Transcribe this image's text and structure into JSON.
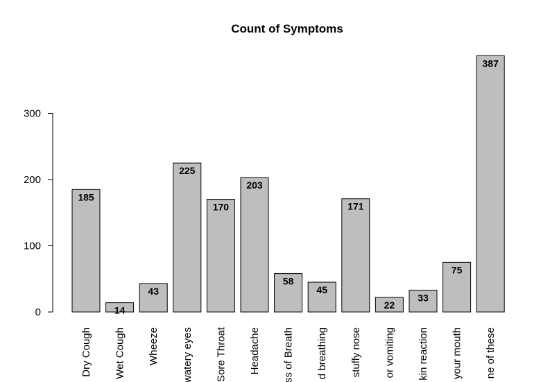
{
  "chart_data": {
    "type": "bar",
    "title": "Count of Symptoms",
    "xlabel": "",
    "ylabel": "",
    "ylim": [
      0,
      400
    ],
    "yticks": [
      0,
      100,
      200,
      300
    ],
    "grid": false,
    "bar_color": "#bebebe",
    "bar_border_color": "#000000",
    "categories": [
      "Dry Cough",
      "Wet Cough",
      "Wheeze",
      "watery eyes",
      "Sore Throat",
      "Headache",
      "ss of Breath",
      "d breathing",
      "stuffy nose",
      "or vomiting",
      "kin reaction",
      "your mouth",
      "ne of these"
    ],
    "values": [
      185,
      14,
      43,
      225,
      170,
      203,
      58,
      45,
      171,
      22,
      33,
      75,
      387
    ]
  }
}
